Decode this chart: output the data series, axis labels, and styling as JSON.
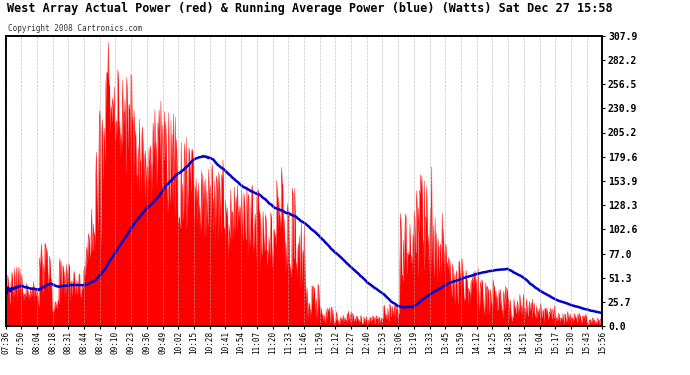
{
  "title": "West Array Actual Power (red) & Running Average Power (blue) (Watts) Sat Dec 27 15:58",
  "copyright": "Copyright 2008 Cartronics.com",
  "ylabel_right": [
    "307.9",
    "282.2",
    "256.5",
    "230.9",
    "205.2",
    "179.6",
    "153.9",
    "128.3",
    "102.6",
    "77.0",
    "51.3",
    "25.7",
    "0.0"
  ],
  "ymax": 307.9,
  "ymin": 0.0,
  "bg_color": "#ffffff",
  "plot_bg_color": "#ffffff",
  "grid_color": "#b0b0b0",
  "actual_color": "#ff0000",
  "avg_color": "#0000cc",
  "x_tick_labels": [
    "07:36",
    "07:50",
    "08:04",
    "08:18",
    "08:31",
    "08:44",
    "08:47",
    "09:10",
    "09:23",
    "09:36",
    "09:49",
    "10:02",
    "10:15",
    "10:28",
    "10:41",
    "10:54",
    "11:07",
    "11:20",
    "11:33",
    "11:46",
    "11:59",
    "12:12",
    "12:27",
    "12:40",
    "12:53",
    "13:06",
    "13:19",
    "13:33",
    "13:45",
    "13:59",
    "14:12",
    "14:25",
    "14:38",
    "14:51",
    "15:04",
    "15:17",
    "15:30",
    "15:43",
    "15:56"
  ]
}
